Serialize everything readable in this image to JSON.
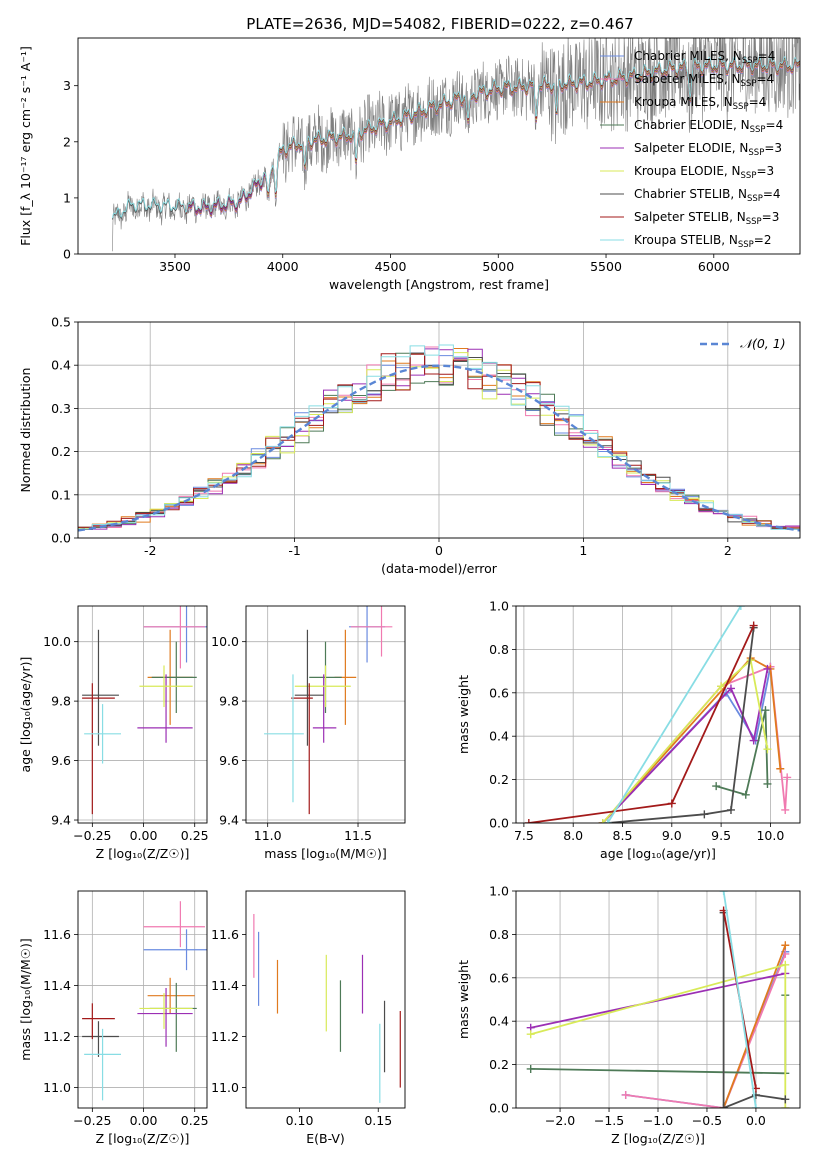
{
  "title": "PLATE=2636, MJD=54082, FIBERID=0222, z=0.467",
  "colors": {
    "chabrier_miles": "#6a8be0",
    "salpeter_miles": "#f07ab0",
    "kroupa_miles": "#e07a1f",
    "chabrier_elodie": "#4e7a57",
    "salpeter_elodie": "#9b2fb4",
    "kroupa_elodie": "#d8ea58",
    "chabrier_stelib": "#4c4c4c",
    "salpeter_stelib": "#a31a1a",
    "kroupa_stelib": "#88dde4",
    "data": "#7f7f7f",
    "gauss": "#5a86d4",
    "grid": "#b0b0b0"
  },
  "legend_spectrum": [
    {
      "text": "Chabrier MILES, N",
      "sub": "SSP",
      "tail": "=4",
      "color": "chabrier_miles"
    },
    {
      "text": "Salpeter MILES, N",
      "sub": "SSP",
      "tail": "=4",
      "color": "salpeter_miles"
    },
    {
      "text": "Kroupa MILES, N",
      "sub": "SSP",
      "tail": "=4",
      "color": "kroupa_miles"
    },
    {
      "text": "Chabrier ELODIE, N",
      "sub": "SSP",
      "tail": "=4",
      "color": "chabrier_elodie"
    },
    {
      "text": "Salpeter ELODIE, N",
      "sub": "SSP",
      "tail": "=3",
      "color": "salpeter_elodie"
    },
    {
      "text": "Kroupa ELODIE, N",
      "sub": "SSP",
      "tail": "=3",
      "color": "kroupa_elodie"
    },
    {
      "text": "Chabrier STELIB, N",
      "sub": "SSP",
      "tail": "=4",
      "color": "chabrier_stelib"
    },
    {
      "text": "Salpeter STELIB, N",
      "sub": "SSP",
      "tail": "=3",
      "color": "salpeter_stelib"
    },
    {
      "text": "Kroupa STELIB, N",
      "sub": "SSP",
      "tail": "=2",
      "color": "kroupa_stelib"
    }
  ],
  "legend_hist": {
    "label": "𝒩(0, 1)"
  },
  "chart_data": [
    {
      "id": "spectrum",
      "type": "line",
      "xlabel": "wavelength [Angstrom, rest frame]",
      "ylabel": "Flux [f_λ 10⁻¹⁷ erg cm⁻² s⁻¹ A⁻¹]",
      "xlim": [
        3050,
        6400
      ],
      "ylim": [
        0,
        3.85
      ],
      "xticks": [
        3500,
        4000,
        4500,
        5000,
        5500,
        6000
      ],
      "yticks": [
        0,
        1,
        2,
        3
      ],
      "grid": false,
      "legend_position": "upper-right",
      "continuum_anchors": {
        "x": [
          3210,
          3300,
          3500,
          3650,
          3800,
          3900,
          4000,
          4100,
          4300,
          4500,
          4800,
          5000,
          5200,
          5400,
          5600,
          5800,
          6000,
          6200
        ],
        "y": [
          0.6,
          0.85,
          0.82,
          0.82,
          0.92,
          1.3,
          1.85,
          2.0,
          2.1,
          2.35,
          2.75,
          2.95,
          3.0,
          3.05,
          3.15,
          3.3,
          3.35,
          3.35
        ]
      }
    },
    {
      "id": "residuals",
      "type": "bar",
      "xlabel": "(data-model)/error",
      "ylabel": "Normed distribution",
      "xlim": [
        -2.5,
        2.5
      ],
      "ylim": [
        0,
        0.5
      ],
      "xticks": [
        -2,
        -1,
        0,
        1,
        2
      ],
      "yticks": [
        0.0,
        0.1,
        0.2,
        0.3,
        0.4,
        0.5
      ],
      "bin_width": 0.1,
      "grid": true,
      "legend_position": "upper-right"
    },
    {
      "id": "age_vs_Z",
      "type": "scatter",
      "xlabel": "Z [log₁₀(Z/Z☉)]",
      "ylabel": "age  [log₁₀(age/yr)]",
      "xlim": [
        -0.32,
        0.31
      ],
      "ylim": [
        9.39,
        10.12
      ],
      "xticks": [
        -0.25,
        0.0,
        0.25
      ],
      "xticklabels": [
        "−0.25",
        "0.00",
        "0.25"
      ],
      "yticks": [
        9.4,
        9.6,
        9.8,
        10.0
      ],
      "grid": true,
      "points": [
        {
          "model": "chabrier_miles",
          "x": 0.21,
          "y": 10.05,
          "xe": [
            0.21,
            0.21
          ],
          "ye": [
            0.12,
            0.12
          ]
        },
        {
          "model": "salpeter_miles",
          "x": 0.18,
          "y": 10.05,
          "xe": [
            0.18,
            0.12
          ],
          "ye": [
            0.14,
            0.14
          ]
        },
        {
          "model": "kroupa_miles",
          "x": 0.13,
          "y": 9.88,
          "xe": [
            0.11,
            0.11
          ],
          "ye": [
            0.16,
            0.16
          ]
        },
        {
          "model": "chabrier_elodie",
          "x": 0.16,
          "y": 9.88,
          "xe": [
            0.12,
            0.1
          ],
          "ye": [
            0.12,
            0.12
          ]
        },
        {
          "model": "salpeter_elodie",
          "x": 0.11,
          "y": 9.71,
          "xe": [
            0.14,
            0.13
          ],
          "ye": [
            0.05,
            0.18
          ]
        },
        {
          "model": "kroupa_elodie",
          "x": 0.1,
          "y": 9.85,
          "xe": [
            0.12,
            0.14
          ],
          "ye": [
            0.07,
            0.07
          ]
        },
        {
          "model": "chabrier_stelib",
          "x": -0.22,
          "y": 9.82,
          "xe": [
            0.08,
            0.1
          ],
          "ye": [
            0.17,
            0.22
          ]
        },
        {
          "model": "salpeter_stelib",
          "x": -0.25,
          "y": 9.81,
          "xe": [
            0.05,
            0.11
          ],
          "ye": [
            0.39,
            0.05
          ]
        },
        {
          "model": "kroupa_stelib",
          "x": -0.2,
          "y": 9.69,
          "xe": [
            0.09,
            0.09
          ],
          "ye": [
            0.1,
            0.1
          ]
        }
      ]
    },
    {
      "id": "age_vs_mass",
      "type": "scatter",
      "xlabel": "mass [log₁₀(M/M☉)]",
      "ylabel": "",
      "xlim": [
        10.88,
        11.76
      ],
      "ylim": [
        9.39,
        10.12
      ],
      "xticks": [
        11.0,
        11.5
      ],
      "xticklabels": [
        "11.0",
        "11.5"
      ],
      "yticks": [
        9.4,
        9.6,
        9.8,
        10.0
      ],
      "grid": true,
      "points": [
        {
          "model": "chabrier_miles",
          "x": 11.55,
          "y": 10.05,
          "xe": [
            0.1,
            0.1
          ],
          "ye": [
            0.12,
            0.12
          ]
        },
        {
          "model": "salpeter_miles",
          "x": 11.63,
          "y": 10.05,
          "xe": [
            0.17,
            0.06
          ],
          "ye": [
            0.1,
            0.09
          ]
        },
        {
          "model": "kroupa_miles",
          "x": 11.43,
          "y": 9.88,
          "xe": [
            0.06,
            0.06
          ],
          "ye": [
            0.16,
            0.16
          ]
        },
        {
          "model": "chabrier_elodie",
          "x": 11.32,
          "y": 9.88,
          "xe": [
            0.09,
            0.09
          ],
          "ye": [
            0.12,
            0.12
          ]
        },
        {
          "model": "salpeter_elodie",
          "x": 11.31,
          "y": 9.71,
          "xe": [
            0.06,
            0.07
          ],
          "ye": [
            0.05,
            0.18
          ]
        },
        {
          "model": "kroupa_elodie",
          "x": 11.32,
          "y": 9.85,
          "xe": [
            0.17,
            0.14
          ],
          "ye": [
            0.07,
            0.07
          ]
        },
        {
          "model": "chabrier_stelib",
          "x": 11.22,
          "y": 9.82,
          "xe": [
            0.07,
            0.09
          ],
          "ye": [
            0.17,
            0.22
          ]
        },
        {
          "model": "salpeter_stelib",
          "x": 11.23,
          "y": 9.81,
          "xe": [
            0.1,
            0.02
          ],
          "ye": [
            0.39,
            0.05
          ]
        },
        {
          "model": "kroupa_stelib",
          "x": 11.14,
          "y": 9.69,
          "xe": [
            0.16,
            0.06
          ],
          "ye": [
            0.23,
            0.2
          ]
        }
      ]
    },
    {
      "id": "weight_vs_age",
      "type": "line",
      "xlabel": "age  [log₁₀(age/yr)]",
      "ylabel": "mass weight",
      "xlim": [
        7.42,
        10.3
      ],
      "ylim": [
        0,
        1
      ],
      "xticks": [
        7.5,
        8.0,
        8.5,
        9.0,
        9.5,
        10.0
      ],
      "xticklabels": [
        "7.5",
        "8.0",
        "8.5",
        "9.0",
        "9.5",
        "10.0"
      ],
      "yticks": [
        0.0,
        0.2,
        0.4,
        0.6,
        0.8,
        1.0
      ],
      "grid": true,
      "series": [
        {
          "model": "chabrier_miles",
          "x": [
            8.3,
            9.55,
            9.85,
            10.0
          ],
          "y": [
            0.0,
            0.6,
            0.38,
            0.72
          ]
        },
        {
          "model": "salpeter_miles",
          "x": [
            8.3,
            9.5,
            10.0,
            10.15,
            10.17
          ],
          "y": [
            0.0,
            0.63,
            0.72,
            0.06,
            0.21
          ]
        },
        {
          "model": "kroupa_miles",
          "x": [
            8.3,
            9.8,
            10.0,
            10.1
          ],
          "y": [
            0.0,
            0.76,
            0.71,
            0.25
          ]
        },
        {
          "model": "chabrier_elodie",
          "x": [
            9.45,
            9.75,
            9.95,
            9.97
          ],
          "y": [
            0.17,
            0.13,
            0.52,
            0.18
          ]
        },
        {
          "model": "salpeter_elodie",
          "x": [
            8.3,
            9.6,
            9.83,
            9.97
          ],
          "y": [
            0.0,
            0.62,
            0.38,
            0.71
          ]
        },
        {
          "model": "kroupa_elodie",
          "x": [
            8.3,
            9.5,
            9.8,
            9.97
          ],
          "y": [
            0.0,
            0.63,
            0.75,
            0.34
          ]
        },
        {
          "model": "chabrier_stelib",
          "x": [
            8.35,
            9.33,
            9.6,
            9.83
          ],
          "y": [
            0.0,
            0.04,
            0.06,
            0.9
          ]
        },
        {
          "model": "salpeter_stelib",
          "x": [
            7.55,
            9.0,
            9.83
          ],
          "y": [
            0.0,
            0.09,
            0.91
          ]
        },
        {
          "model": "kroupa_stelib",
          "x": [
            8.35,
            9.7
          ],
          "y": [
            0.0,
            1.0
          ]
        }
      ]
    },
    {
      "id": "mass_vs_Z",
      "type": "scatter",
      "xlabel": "Z [log₁₀(Z/Z☉)]",
      "ylabel": "mass [log₁₀(M/M☉)]",
      "xlim": [
        -0.32,
        0.31
      ],
      "ylim": [
        10.92,
        11.77
      ],
      "xticks": [
        -0.25,
        0.0,
        0.25
      ],
      "xticklabels": [
        "−0.25",
        "0.00",
        "0.25"
      ],
      "yticks": [
        11.0,
        11.2,
        11.4,
        11.6
      ],
      "grid": true,
      "points": [
        {
          "model": "chabrier_miles",
          "x": 0.21,
          "y": 11.54,
          "xe": [
            0.21,
            0.21
          ],
          "ye": [
            0.08,
            0.08
          ]
        },
        {
          "model": "salpeter_miles",
          "x": 0.18,
          "y": 11.63,
          "xe": [
            0.18,
            0.12
          ],
          "ye": [
            0.08,
            0.1
          ]
        },
        {
          "model": "kroupa_miles",
          "x": 0.13,
          "y": 11.36,
          "xe": [
            0.11,
            0.12
          ],
          "ye": [
            0.07,
            0.07
          ]
        },
        {
          "model": "chabrier_elodie",
          "x": 0.16,
          "y": 11.31,
          "xe": [
            0.13,
            0.1
          ],
          "ye": [
            0.17,
            0.1
          ]
        },
        {
          "model": "salpeter_elodie",
          "x": 0.11,
          "y": 11.29,
          "xe": [
            0.14,
            0.13
          ],
          "ye": [
            0.13,
            0.1
          ]
        },
        {
          "model": "kroupa_elodie",
          "x": 0.1,
          "y": 11.31,
          "xe": [
            0.12,
            0.14
          ],
          "ye": [
            0.08,
            0.06
          ]
        },
        {
          "model": "chabrier_stelib",
          "x": -0.22,
          "y": 11.2,
          "xe": [
            0.08,
            0.1
          ],
          "ye": [
            0.08,
            0.06
          ]
        },
        {
          "model": "salpeter_stelib",
          "x": -0.25,
          "y": 11.27,
          "xe": [
            0.05,
            0.11
          ],
          "ye": [
            0.08,
            0.06
          ]
        },
        {
          "model": "kroupa_stelib",
          "x": -0.2,
          "y": 11.13,
          "xe": [
            0.09,
            0.09
          ],
          "ye": [
            0.18,
            0.1
          ]
        }
      ]
    },
    {
      "id": "mass_vs_ebv",
      "type": "scatter",
      "xlabel": "E(B-V)",
      "ylabel": "",
      "xlim": [
        0.066,
        0.167
      ],
      "ylim": [
        10.92,
        11.77
      ],
      "xticks": [
        0.1,
        0.15
      ],
      "xticklabels": [
        "0.10",
        "0.15"
      ],
      "yticks": [
        11.0,
        11.2,
        11.4,
        11.6
      ],
      "grid": false,
      "points": [
        {
          "model": "chabrier_miles",
          "x": 0.074,
          "y": 11.46,
          "xe": [
            0,
            0
          ],
          "ye": [
            0.14,
            0.15
          ]
        },
        {
          "model": "salpeter_miles",
          "x": 0.071,
          "y": 11.55,
          "xe": [
            0,
            0
          ],
          "ye": [
            0.12,
            0.13
          ]
        },
        {
          "model": "kroupa_miles",
          "x": 0.086,
          "y": 11.4,
          "xe": [
            0,
            0
          ],
          "ye": [
            0.11,
            0.1
          ]
        },
        {
          "model": "chabrier_elodie",
          "x": 0.126,
          "y": 11.28,
          "xe": [
            0,
            0
          ],
          "ye": [
            0.14,
            0.14
          ]
        },
        {
          "model": "salpeter_elodie",
          "x": 0.14,
          "y": 11.41,
          "xe": [
            0,
            0
          ],
          "ye": [
            0.12,
            0.11
          ]
        },
        {
          "model": "kroupa_elodie",
          "x": 0.117,
          "y": 11.37,
          "xe": [
            0,
            0
          ],
          "ye": [
            0.15,
            0.15
          ]
        },
        {
          "model": "chabrier_stelib",
          "x": 0.154,
          "y": 11.2,
          "xe": [
            0,
            0
          ],
          "ye": [
            0.14,
            0.14
          ]
        },
        {
          "model": "salpeter_stelib",
          "x": 0.164,
          "y": 11.15,
          "xe": [
            0,
            0
          ],
          "ye": [
            0.15,
            0.15
          ]
        },
        {
          "model": "kroupa_stelib",
          "x": 0.151,
          "y": 11.1,
          "xe": [
            0,
            0
          ],
          "ye": [
            0.16,
            0.15
          ]
        }
      ]
    },
    {
      "id": "weight_vs_Z",
      "type": "line",
      "xlabel": "Z [log₁₀(Z/Z☉)]",
      "ylabel": "mass weight",
      "xlim": [
        -2.45,
        0.45
      ],
      "ylim": [
        0,
        1
      ],
      "xticks": [
        -2.0,
        -1.5,
        -1.0,
        -0.5,
        0.0
      ],
      "xticklabels": [
        "−2.0",
        "−1.5",
        "−1.0",
        "−0.5",
        "0.0"
      ],
      "yticks": [
        0.0,
        0.2,
        0.4,
        0.6,
        0.8,
        1.0
      ],
      "grid": true,
      "series": [
        {
          "model": "chabrier_miles",
          "x": [
            -1.33,
            -0.33,
            0.3
          ],
          "y": [
            0.06,
            0.0,
            0.72
          ]
        },
        {
          "model": "salpeter_miles",
          "x": [
            -1.33,
            -0.33,
            0.3
          ],
          "y": [
            0.06,
            0.0,
            0.71
          ]
        },
        {
          "model": "kroupa_miles",
          "x": [
            -0.33,
            0.3
          ],
          "y": [
            0.0,
            0.75
          ]
        },
        {
          "model": "chabrier_elodie",
          "x": [
            -2.3,
            0.3,
            0.3
          ],
          "y": [
            0.18,
            0.16,
            0.52
          ]
        },
        {
          "model": "salpeter_elodie",
          "x": [
            -2.3,
            0.3
          ],
          "y": [
            0.37,
            0.62
          ]
        },
        {
          "model": "kroupa_elodie",
          "x": [
            -2.3,
            0.3,
            0.3
          ],
          "y": [
            0.34,
            0.66,
            0.0
          ]
        },
        {
          "model": "chabrier_stelib",
          "x": [
            -0.33,
            -0.33,
            0.0,
            0.3
          ],
          "y": [
            0.9,
            0.0,
            0.06,
            0.04
          ]
        },
        {
          "model": "salpeter_stelib",
          "x": [
            -0.33,
            0.0
          ],
          "y": [
            0.91,
            0.09
          ]
        },
        {
          "model": "kroupa_stelib",
          "x": [
            -0.33,
            0.0
          ],
          "y": [
            1.0,
            0.0
          ]
        }
      ]
    }
  ]
}
